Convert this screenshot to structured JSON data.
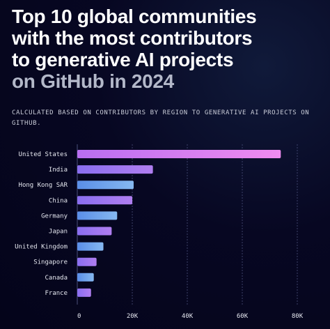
{
  "title": {
    "line1": "Top 10 global communities",
    "line2": "with the most contributors",
    "line3": "to generative AI projects",
    "line4": "on GitHub in 2024"
  },
  "subtitle": "CALCULATED BASED ON CONTRIBUTORS BY REGION TO GENERATIVE AI PROJECTS ON GITHUB.",
  "colors": {
    "background": "#05051c",
    "pink_bar": "#d878f0",
    "purple_bar": "#9b6ee8",
    "blue_bar": "#6aa2e8",
    "grid": "#4a4f7a"
  },
  "chart_data": {
    "type": "bar",
    "orientation": "horizontal",
    "categories": [
      "United States",
      "India",
      "Hong Kong SAR",
      "China",
      "Germany",
      "Japan",
      "United Kingdom",
      "Singapore",
      "Canada",
      "France"
    ],
    "values": [
      74000,
      27500,
      20500,
      20000,
      14500,
      12500,
      9500,
      7000,
      6000,
      5000
    ],
    "bar_colors": [
      "pink",
      "purple",
      "blue",
      "purple",
      "blue",
      "purple",
      "blue",
      "purple",
      "blue",
      "purple"
    ],
    "xlim": [
      0,
      80000
    ],
    "xticks": [
      {
        "value": 0,
        "label": "0"
      },
      {
        "value": 20000,
        "label": "20K"
      },
      {
        "value": 40000,
        "label": "40K"
      },
      {
        "value": 60000,
        "label": "60K"
      },
      {
        "value": 80000,
        "label": "80K"
      }
    ],
    "grid": true
  }
}
